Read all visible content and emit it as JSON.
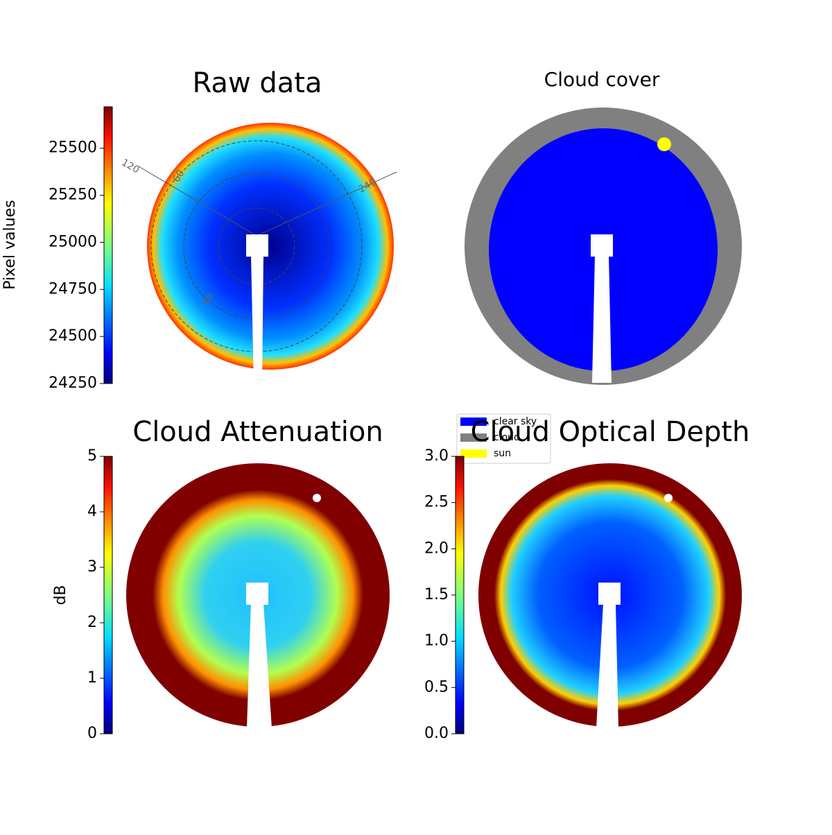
{
  "chart_data": [
    {
      "type": "image",
      "title": "Raw data",
      "colorbar": {
        "label": "Pixel values",
        "lim": [
          24250,
          25720
        ],
        "ticks": [
          24250,
          24500,
          24750,
          25000,
          25250,
          25500
        ]
      },
      "annotations": [
        "120",
        "60",
        "240",
        "40"
      ]
    },
    {
      "type": "image",
      "title": "Cloud cover",
      "legend": [
        {
          "name": "clear sky",
          "color": "#0000ff"
        },
        {
          "name": "cloud",
          "color": "#808080"
        },
        {
          "name": "sun",
          "color": "#ffff00"
        }
      ]
    },
    {
      "type": "image",
      "title": "Cloud Attenuation",
      "colorbar": {
        "label": "dB",
        "lim": [
          0,
          5
        ],
        "ticks": [
          0,
          1,
          2,
          3,
          4,
          5
        ]
      }
    },
    {
      "type": "image",
      "title": "Cloud Optical Depth",
      "colorbar": {
        "lim": [
          0,
          3
        ],
        "ticks": [
          {
            "value": 0,
            "label": "0.0"
          },
          {
            "value": 0.5,
            "label": "0.5"
          },
          {
            "value": 1,
            "label": "1.0"
          },
          {
            "value": 1.5,
            "label": "1.5"
          },
          {
            "value": 2,
            "label": "2.0"
          },
          {
            "value": 2.5,
            "label": "2.5"
          },
          {
            "value": 3,
            "label": "3.0"
          }
        ]
      }
    }
  ]
}
